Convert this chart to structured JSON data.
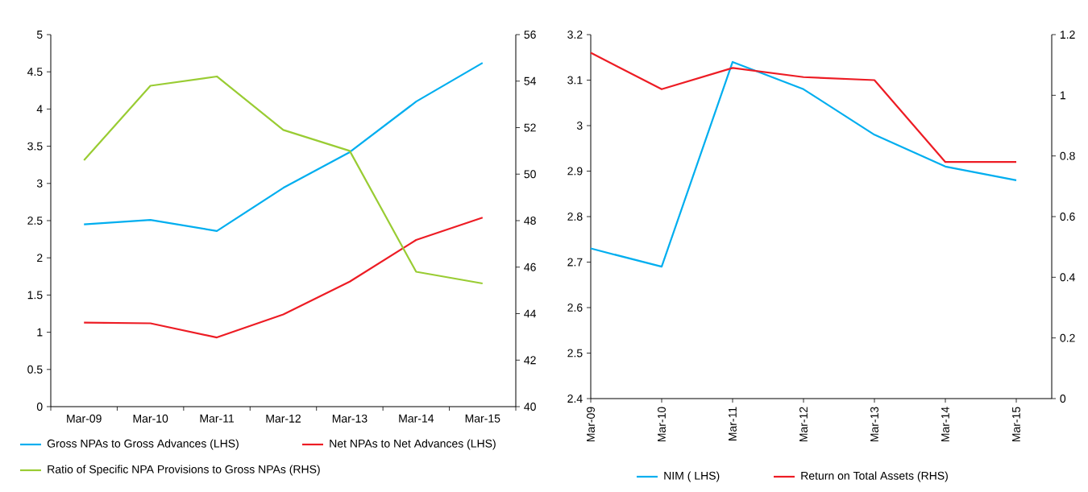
{
  "chart_data": [
    {
      "type": "line",
      "categories": [
        "Mar-09",
        "Mar-10",
        "Mar-11",
        "Mar-12",
        "Mar-13",
        "Mar-14",
        "Mar-15"
      ],
      "series": [
        {
          "name": "Gross NPAs to Gross Advances (LHS)",
          "color": "#00aeef",
          "values": [
            2.45,
            2.51,
            2.36,
            2.94,
            3.42,
            4.1,
            4.62
          ]
        },
        {
          "name": "Net NPAs to Net Advances (LHS)",
          "color": "#ed1c24",
          "values": [
            1.13,
            1.12,
            0.93,
            1.24,
            1.68,
            2.24,
            2.54
          ]
        },
        {
          "name": "Ratio of Specific NPA Provisions to Gross NPAs (RHS)",
          "color": "#99cc33",
          "axis": "y2",
          "values": [
            50.6,
            53.8,
            54.2,
            51.9,
            51.0,
            45.8,
            45.3
          ]
        }
      ],
      "ylim": [
        0,
        5
      ],
      "yticks": [
        0,
        0.5,
        1,
        1.5,
        2,
        2.5,
        3,
        3.5,
        4,
        4.5,
        5
      ],
      "y2lim": [
        40,
        56
      ],
      "y2ticks": [
        40,
        42,
        44,
        46,
        48,
        50,
        52,
        54,
        56
      ],
      "legend": "bottom"
    },
    {
      "type": "line",
      "categories": [
        "Mar-09",
        "Mar-10",
        "Mar-11",
        "Mar-12",
        "Mar-13",
        "Mar-14",
        "Mar-15"
      ],
      "series": [
        {
          "name": "NIM ( LHS)",
          "color": "#00aeef",
          "values": [
            2.73,
            2.69,
            3.14,
            3.08,
            2.98,
            2.91,
            2.88
          ]
        },
        {
          "name": "Return on Total Assets (RHS)",
          "color": "#ed1c24",
          "axis": "y2",
          "values": [
            1.14,
            1.02,
            1.09,
            1.06,
            1.05,
            0.78,
            0.78
          ]
        }
      ],
      "ylim": [
        2.4,
        3.2
      ],
      "yticks": [
        2.4,
        2.5,
        2.6,
        2.7,
        2.8,
        2.9,
        3,
        3.1,
        3.2
      ],
      "y2lim": [
        0,
        1.2
      ],
      "y2ticks": [
        0,
        0.2,
        0.4,
        0.6,
        0.8,
        1,
        1.2
      ],
      "legend": "bottom"
    }
  ]
}
